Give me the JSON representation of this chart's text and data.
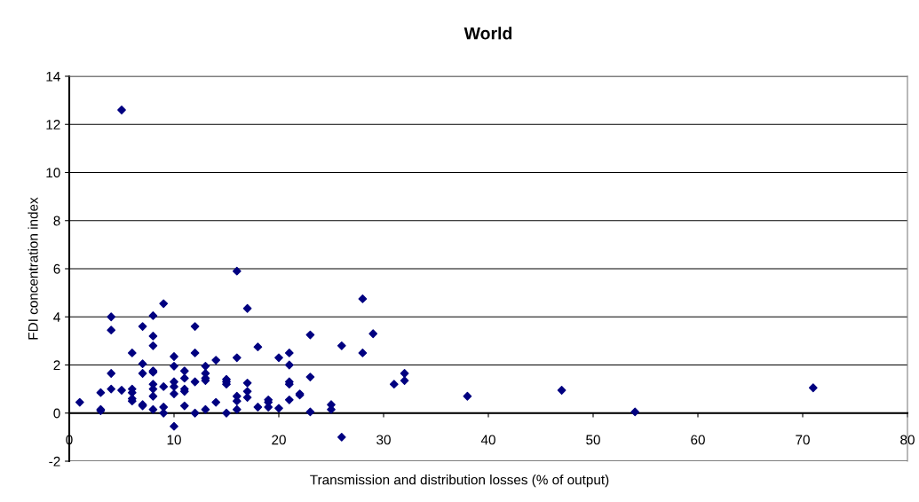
{
  "chart_data": {
    "type": "scatter",
    "title": "World",
    "xlabel": "Transmission and distribution losses (% of output)",
    "ylabel": "FDI concentration index",
    "x": [
      1,
      3,
      3,
      3,
      4,
      4,
      4,
      4,
      5,
      5,
      6,
      6,
      6,
      6,
      6,
      7,
      7,
      7,
      7,
      7,
      8,
      8,
      8,
      8,
      8,
      8,
      8,
      8,
      8,
      9,
      9,
      9,
      9,
      10,
      10,
      10,
      10,
      10,
      10,
      11,
      11,
      11,
      11,
      11,
      12,
      12,
      12,
      12,
      13,
      13,
      13,
      13,
      13,
      14,
      14,
      15,
      15,
      15,
      15,
      16,
      16,
      16,
      16,
      16,
      17,
      17,
      17,
      17,
      18,
      18,
      19,
      19,
      19,
      20,
      20,
      21,
      21,
      21,
      21,
      21,
      22,
      22,
      23,
      23,
      23,
      25,
      25,
      26,
      26,
      28,
      28,
      29,
      31,
      32,
      32,
      38,
      47,
      54,
      71
    ],
    "series": [
      {
        "color": "#000080",
        "values": [
          0.45,
          0.15,
          0.1,
          0.85,
          4.0,
          3.45,
          1.65,
          1.0,
          12.6,
          0.95,
          2.5,
          1.0,
          0.85,
          0.6,
          0.5,
          3.6,
          2.05,
          1.65,
          0.35,
          0.3,
          4.05,
          3.2,
          2.8,
          1.75,
          1.7,
          1.2,
          1.0,
          0.7,
          0.15,
          4.55,
          1.1,
          0.25,
          0.0,
          2.35,
          1.95,
          1.3,
          1.1,
          0.8,
          -0.55,
          1.75,
          1.45,
          1.0,
          0.9,
          0.3,
          3.6,
          2.5,
          1.3,
          0.0,
          1.95,
          1.65,
          1.45,
          1.35,
          0.15,
          2.2,
          0.45,
          1.4,
          1.3,
          1.2,
          0.0,
          5.9,
          2.3,
          0.7,
          0.5,
          0.15,
          4.35,
          1.25,
          0.9,
          0.65,
          2.75,
          0.25,
          0.55,
          0.45,
          0.25,
          2.3,
          0.2,
          2.5,
          2.0,
          1.3,
          1.2,
          0.55,
          0.8,
          0.75,
          3.25,
          1.5,
          0.05,
          0.35,
          0.15,
          2.8,
          -1.0,
          4.75,
          2.5,
          3.3,
          1.2,
          1.65,
          1.35,
          0.7,
          0.95,
          0.05,
          1.05
        ]
      }
    ],
    "xlim": [
      0,
      80
    ],
    "xticks": [
      0,
      10,
      20,
      30,
      40,
      50,
      60,
      70,
      80
    ],
    "ylim": [
      -2,
      14
    ],
    "yticks": [
      -2,
      0,
      2,
      4,
      6,
      8,
      10,
      12,
      14
    ],
    "grid": "y",
    "marker": "diamond",
    "legend": false
  }
}
